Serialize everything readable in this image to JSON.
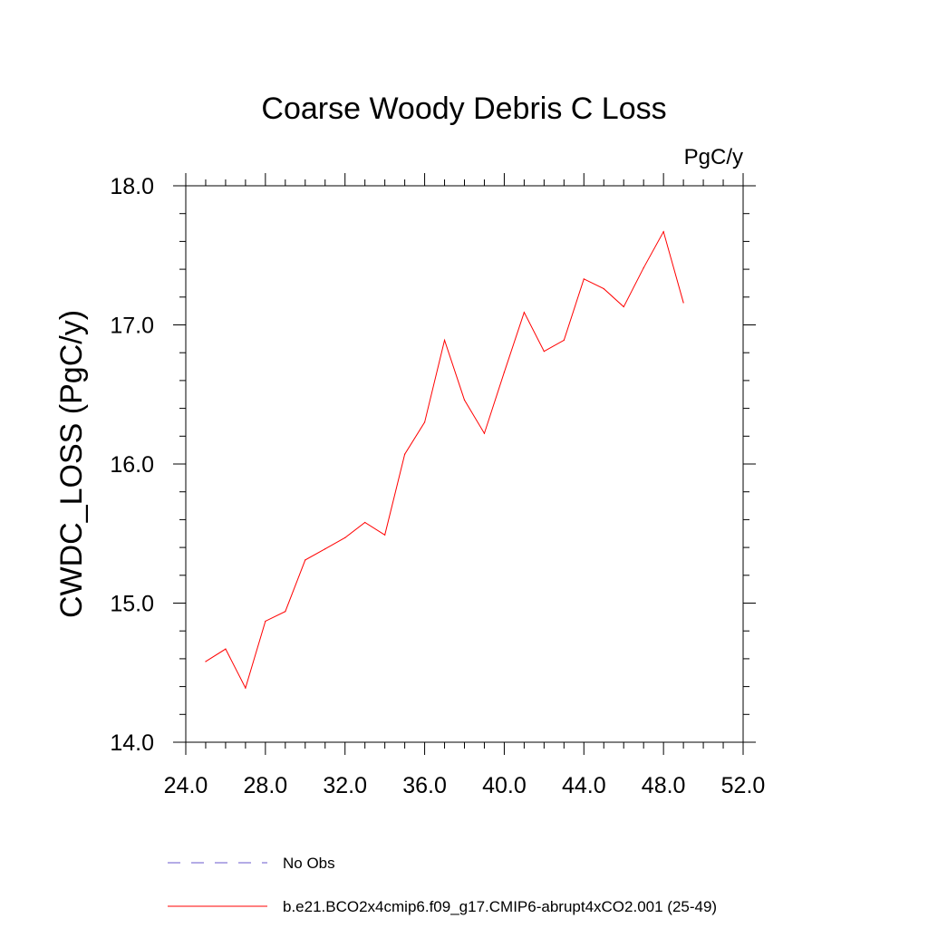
{
  "chart_data": {
    "type": "line",
    "title": "Coarse Woody Debris C Loss",
    "units_label": "PgC/y",
    "ylabel": "CWDC_LOSS  (PgC/y)",
    "xlabel": "",
    "xlim": [
      24,
      52
    ],
    "ylim": [
      14,
      18
    ],
    "x_ticks": [
      "24.0",
      "28.0",
      "32.0",
      "36.0",
      "40.0",
      "44.0",
      "48.0",
      "52.0"
    ],
    "y_ticks": [
      "14.0",
      "15.0",
      "16.0",
      "17.0",
      "18.0"
    ],
    "grid": false,
    "legend_position": "bottom",
    "series": [
      {
        "name": "b.e21.BCO2x4cmip6.f09_g17.CMIP6-abrupt4xCO2.001 (25-49)",
        "color": "#ff0000",
        "x": [
          25,
          26,
          27,
          28,
          29,
          30,
          31,
          32,
          33,
          34,
          35,
          36,
          37,
          38,
          39,
          40,
          41,
          42,
          43,
          44,
          45,
          46,
          47,
          48,
          49
        ],
        "values": [
          14.58,
          14.67,
          14.39,
          14.87,
          14.94,
          15.31,
          15.39,
          15.47,
          15.58,
          15.49,
          16.07,
          16.3,
          16.89,
          16.46,
          16.22,
          16.66,
          17.09,
          16.81,
          16.89,
          17.33,
          17.26,
          17.13,
          17.41,
          17.67,
          17.16
        ]
      }
    ],
    "legend": [
      {
        "label": "No Obs",
        "color": "#6a5acd",
        "style": "dashed"
      },
      {
        "label": "b.e21.BCO2x4cmip6.f09_g17.CMIP6-abrupt4xCO2.001 (25-49)",
        "color": "#ff0000",
        "style": "solid"
      }
    ]
  }
}
